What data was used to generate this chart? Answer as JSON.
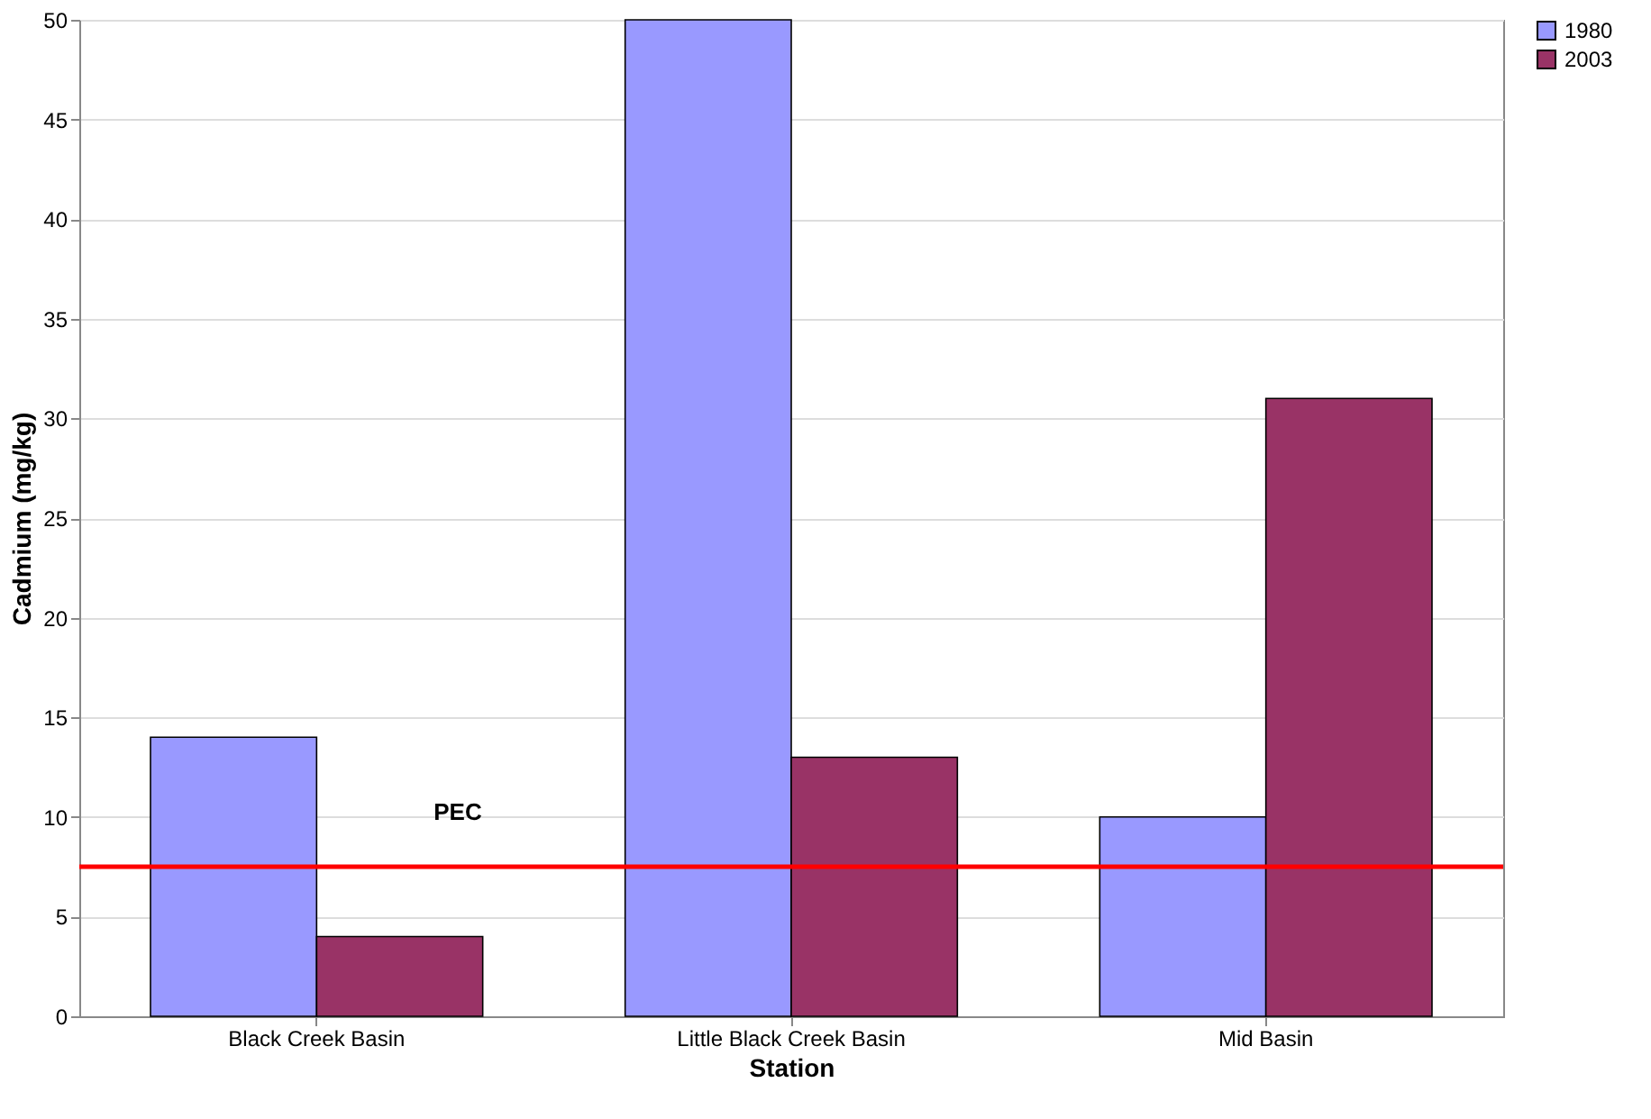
{
  "chart_data": {
    "type": "bar",
    "xlabel": "Station",
    "ylabel": "Cadmium (mg/kg)",
    "categories": [
      "Black Creek Basin",
      "Little Black Creek Basin",
      "Mid Basin"
    ],
    "series": [
      {
        "name": "1980",
        "color": "#9999ff",
        "values": [
          14,
          50,
          10
        ]
      },
      {
        "name": "2003",
        "color": "#993366",
        "values": [
          4,
          13,
          31
        ]
      }
    ],
    "ylim": [
      0,
      50
    ],
    "yticks": [
      0,
      5,
      10,
      15,
      20,
      25,
      30,
      35,
      40,
      45,
      50
    ],
    "grid": "y",
    "legend": "right",
    "ref_lines": [
      {
        "axis": "y",
        "value": 7.5,
        "label": "PEC",
        "color": "#ff0000"
      }
    ]
  }
}
